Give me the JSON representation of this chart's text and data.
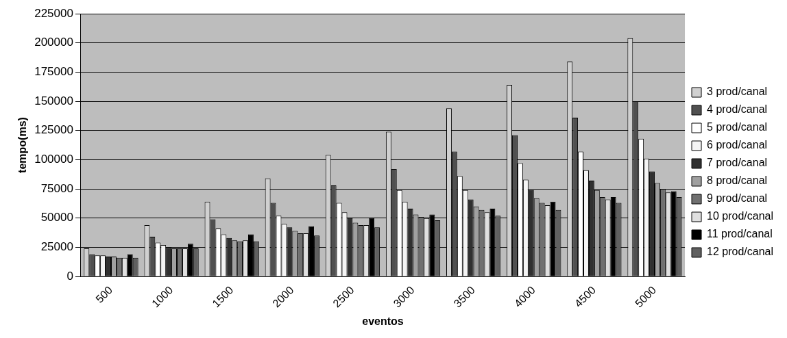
{
  "chart_data": {
    "type": "bar",
    "xlabel": "eventos",
    "ylabel": "tempo(ms)",
    "categories": [
      "500",
      "1000",
      "1500",
      "2000",
      "2500",
      "3000",
      "3500",
      "4000",
      "4500",
      "5000"
    ],
    "ylim": [
      0,
      225000
    ],
    "yticks": [
      0,
      25000,
      50000,
      75000,
      100000,
      125000,
      150000,
      175000,
      200000,
      225000
    ],
    "grid": "y",
    "legend": "right",
    "series": [
      {
        "name": "3 prod/canal",
        "color": "#d0d0d0",
        "values": [
          24000,
          44000,
          64000,
          84000,
          104000,
          124000,
          144000,
          164000,
          184000,
          204000
        ]
      },
      {
        "name": "4 prod/canal",
        "color": "#505050",
        "values": [
          19000,
          34000,
          49000,
          63000,
          78000,
          92000,
          107000,
          121000,
          136000,
          150000
        ]
      },
      {
        "name": "5 prod/canal",
        "color": "#ffffff",
        "values": [
          18000,
          29000,
          41000,
          52000,
          63000,
          74000,
          86000,
          97000,
          107000,
          118000
        ]
      },
      {
        "name": "6 prod/canal",
        "color": "#f4f4f4",
        "values": [
          18000,
          27000,
          36000,
          45000,
          55000,
          64000,
          74000,
          83000,
          91000,
          101000
        ]
      },
      {
        "name": "7 prod/canal",
        "color": "#303030",
        "values": [
          17000,
          25000,
          33000,
          42000,
          50000,
          58000,
          66000,
          74000,
          82000,
          90000
        ]
      },
      {
        "name": "8 prod/canal",
        "color": "#a0a0a0",
        "values": [
          17000,
          24000,
          31000,
          39000,
          46000,
          53000,
          60000,
          67000,
          74000,
          80000
        ]
      },
      {
        "name": "9 prod/canal",
        "color": "#707070",
        "values": [
          16000,
          24000,
          30000,
          37000,
          44000,
          51000,
          57000,
          63000,
          68000,
          75000
        ]
      },
      {
        "name": "10 prod/canal",
        "color": "#e0e0e0",
        "values": [
          16000,
          24000,
          31000,
          37000,
          44000,
          50000,
          55000,
          61000,
          66000,
          72000
        ]
      },
      {
        "name": "11 prod/canal",
        "color": "#000000",
        "values": [
          19000,
          28000,
          36000,
          43000,
          50000,
          53000,
          58000,
          64000,
          68000,
          73000
        ]
      },
      {
        "name": "12 prod/canal",
        "color": "#606060",
        "values": [
          16000,
          24000,
          30000,
          35000,
          42000,
          48000,
          52000,
          57000,
          63000,
          68000
        ]
      }
    ]
  }
}
